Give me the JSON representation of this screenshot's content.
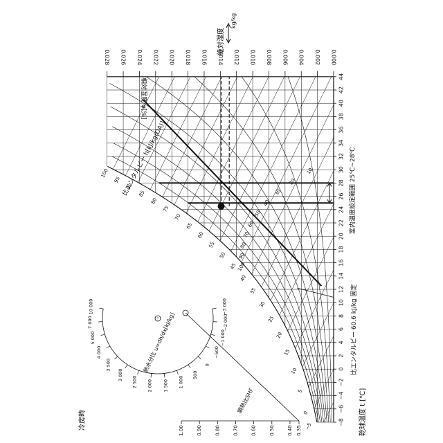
{
  "chart_data": {
    "type": "psychrometric",
    "title": "冷房時",
    "orientation": "rotated 90° clockwise",
    "xaxis": {
      "label": "乾球温度 t [℃]",
      "ticks": [
        "−8",
        "−6",
        "−4",
        "−2",
        "0",
        "2",
        "4",
        "6",
        "8",
        "10",
        "12",
        "14",
        "16",
        "18",
        "20",
        "22",
        "24",
        "26",
        "28",
        "30",
        "32",
        "34",
        "36",
        "38",
        "40",
        "42",
        "44"
      ],
      "range": [
        -8,
        44
      ]
    },
    "yaxis": {
      "label": "絶対湿度",
      "unit": "kg/kg",
      "ticks": [
        "0.000",
        "0.002",
        "0.004",
        "0.006",
        "0.008",
        "0.010",
        "0.012",
        "0.014",
        "0.016",
        "0.018",
        "0.020",
        "0.022",
        "0.024",
        "0.026",
        "0.028"
      ],
      "range": [
        0,
        0.028
      ]
    },
    "rh_label": "相対湿度 φ[%]",
    "rh_curves": [
      "10",
      "20",
      "30",
      "40",
      "50",
      "60",
      "70",
      "80",
      "90",
      "100"
    ],
    "enthalpy_label": "比エンタルピー h[kJ/kg(DA)]",
    "enthalpy_ticks": [
      "−5",
      "0",
      "5",
      "10",
      "15",
      "20",
      "25",
      "30",
      "35",
      "40",
      "45",
      "50",
      "55",
      "60",
      "65",
      "70",
      "75",
      "80",
      "85",
      "90",
      "95",
      "100"
    ],
    "shf_label": "顕熱比SHF",
    "shf_ticks": [
      "0.35",
      "0.40",
      "0.50",
      "0.60",
      "0.70",
      "0.80",
      "0.90",
      "1.00"
    ],
    "moisture_ratio_label": "熱水分比 u=dh/dx[kJ/kg]",
    "moisture_ratio_ticks": [
      "−3 000",
      "−2 000",
      "−1 000",
      "−500",
      "0",
      "500",
      "1 000",
      "1 500",
      "2 000",
      "2 500",
      "3 000",
      "3 500",
      "4 000",
      "5 000",
      "7 000",
      "10 000"
    ],
    "annotations": {
      "fixed_enthalpy": "比エンタルピー 60.6 kJ/kg 固定",
      "room_range": "室内温度設定範囲 25℃~28℃"
    },
    "lines": [
      {
        "kind": "drybulb",
        "t": 25
      },
      {
        "kind": "drybulb",
        "t": 28
      },
      {
        "kind": "ratio_line",
        "from": {
          "t": 12.5,
          "x": 0.0015
        },
        "to": {
          "t": 40.5,
          "x": 0.0235
        }
      }
    ],
    "point": {
      "t": 24.5,
      "x": 0.0139
    },
    "guide_lines": [
      {
        "x": 0.0139
      },
      {
        "x": 0.0129
      }
    ],
    "colors": {
      "ink": "#111111",
      "background": "#ffffff"
    }
  }
}
